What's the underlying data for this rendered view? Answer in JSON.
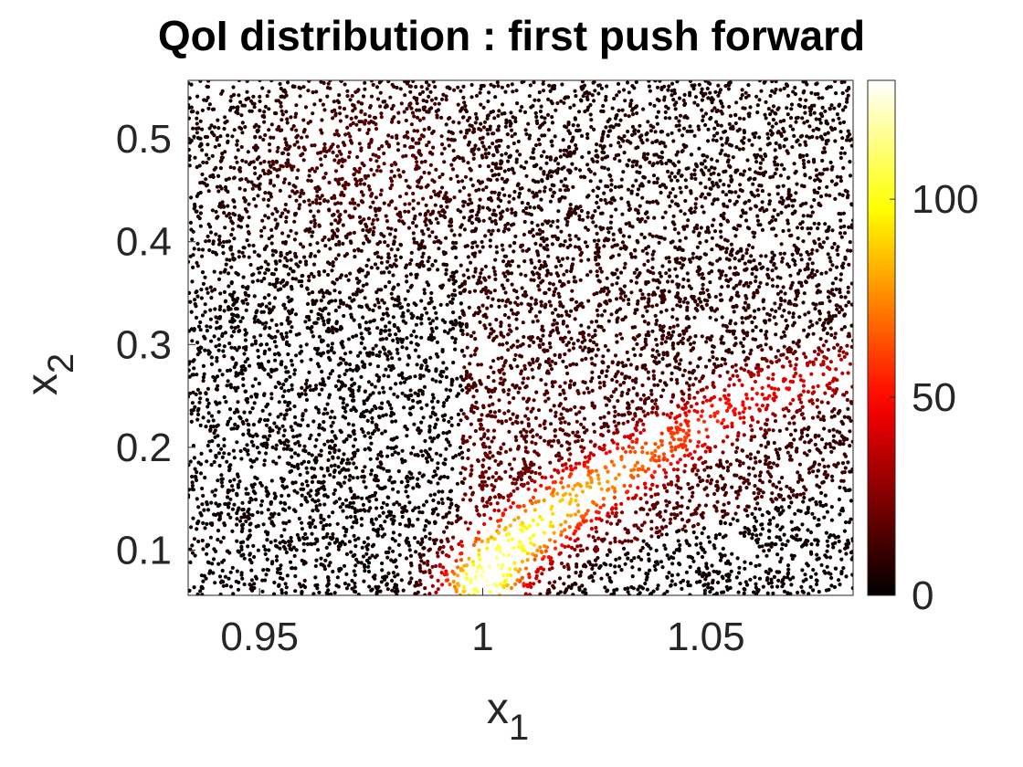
{
  "chart_data": {
    "type": "scatter",
    "title": "QoI distribution : first push forward",
    "xlabel": "x",
    "xlabel_sub": "1",
    "ylabel": "x",
    "ylabel_sub": "2",
    "xlim": [
      0.934,
      1.083
    ],
    "ylim": [
      0.056,
      0.557
    ],
    "xticks": [
      0.95,
      1,
      1.05
    ],
    "xtick_labels": [
      "0.95",
      "1",
      "1.05"
    ],
    "yticks": [
      0.1,
      0.2,
      0.3,
      0.4,
      0.5
    ],
    "ytick_labels": [
      "0.1",
      "0.2",
      "0.3",
      "0.4",
      "0.5"
    ],
    "colorbar": {
      "colormap": "hot",
      "clim": [
        0,
        130
      ],
      "ticks": [
        0,
        50,
        100
      ],
      "tick_labels": [
        "0",
        "50",
        "100"
      ]
    },
    "density_description": {
      "peak": {
        "x": 1.005,
        "y": 0.1,
        "value": 130
      },
      "ridge": [
        {
          "x": 1.0,
          "y": 0.07
        },
        {
          "x": 1.005,
          "y": 0.1
        },
        {
          "x": 1.02,
          "y": 0.15
        },
        {
          "x": 1.04,
          "y": 0.2
        },
        {
          "x": 1.06,
          "y": 0.25
        },
        {
          "x": 1.08,
          "y": 0.275
        }
      ],
      "secondary_lobe": {
        "x_range": [
          0.95,
          1.0
        ],
        "y_range": [
          0.4,
          0.55
        ],
        "value": 15
      }
    },
    "grid": false,
    "legend": "none"
  },
  "colors": {
    "background": "#ffffff",
    "axis": "#262626",
    "colormap_stops": [
      "#000000",
      "#b00000",
      "#ff2000",
      "#ff9000",
      "#ffff00",
      "#ffffff"
    ]
  }
}
